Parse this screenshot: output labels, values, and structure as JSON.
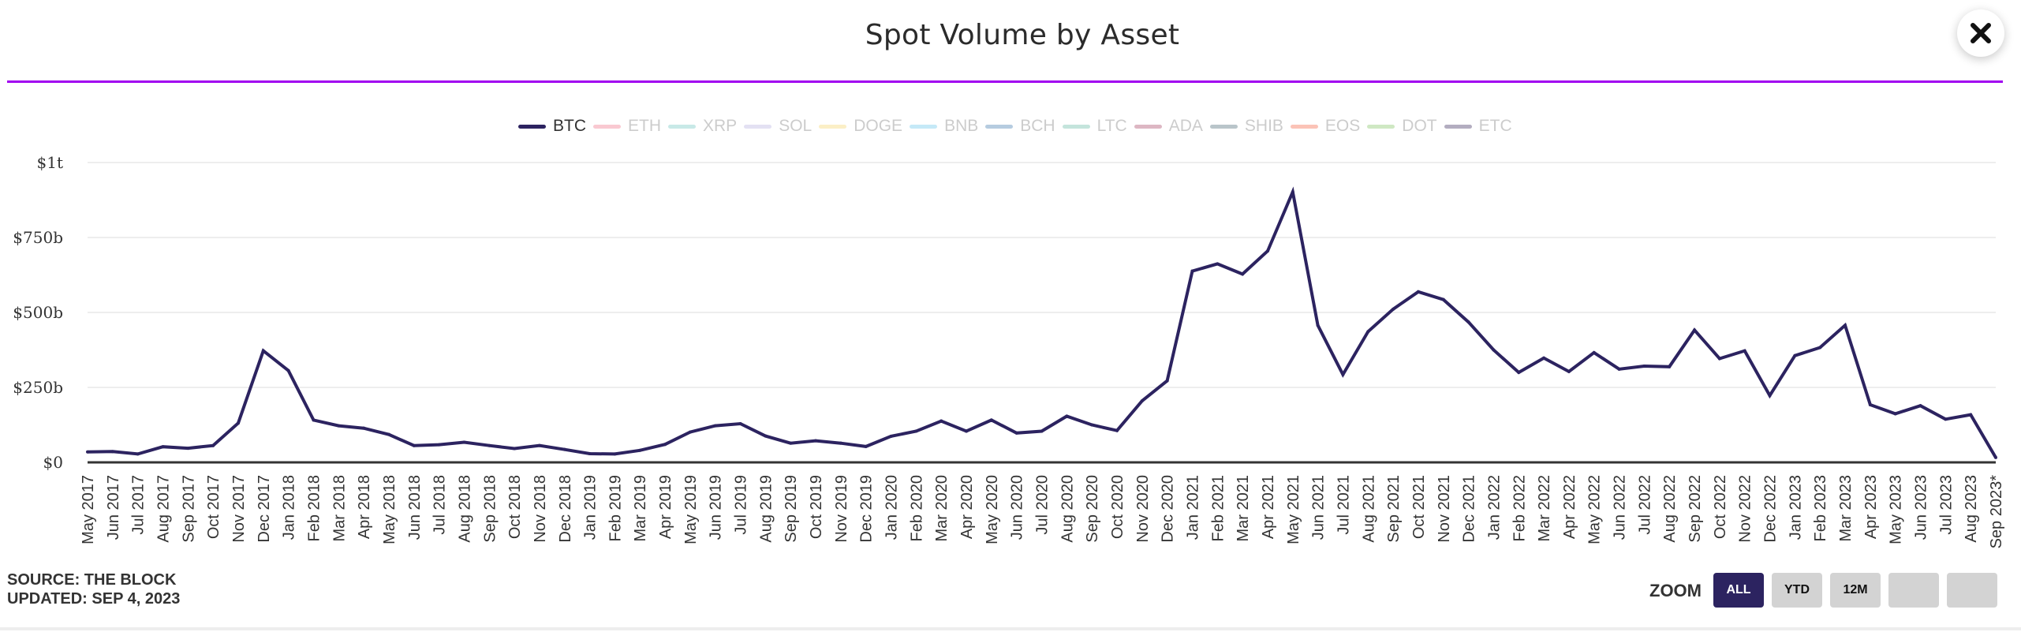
{
  "header": {
    "title": "Spot Volume by Asset",
    "close_icon": "close-icon"
  },
  "colors": {
    "accent_divider": "#a100f0",
    "btc_line": "#2c2360",
    "gridline": "#eeeeee",
    "axis": "#333333",
    "legend_inactive_text": "#cccccc",
    "legend_active_text": "#333333",
    "zoom_active_bg": "#2c2360",
    "zoom_inactive_bg": "#d3d3d3"
  },
  "legend": [
    {
      "label": "BTC",
      "color": "#2c2360",
      "active": true
    },
    {
      "label": "ETH",
      "color": "#f9c9d1",
      "active": false
    },
    {
      "label": "XRP",
      "color": "#c8e9e7",
      "active": false
    },
    {
      "label": "SOL",
      "color": "#e3e1f3",
      "active": false
    },
    {
      "label": "DOGE",
      "color": "#fbefc6",
      "active": false
    },
    {
      "label": "BNB",
      "color": "#c5e9f7",
      "active": false
    },
    {
      "label": "BCH",
      "color": "#b6cce0",
      "active": false
    },
    {
      "label": "LTC",
      "color": "#c4e4dc",
      "active": false
    },
    {
      "label": "ADA",
      "color": "#ddb7c3",
      "active": false
    },
    {
      "label": "SHIB",
      "color": "#b9c5ca",
      "active": false
    },
    {
      "label": "EOS",
      "color": "#fbc3b7",
      "active": false
    },
    {
      "label": "DOT",
      "color": "#cfe8c3",
      "active": false
    },
    {
      "label": "ETC",
      "color": "#b3adc0",
      "active": false
    }
  ],
  "footer": {
    "source": "SOURCE: THE BLOCK",
    "updated": "UPDATED: SEP 4, 2023",
    "zoom_label": "ZOOM",
    "zoom_buttons": [
      {
        "label": "ALL",
        "active": true
      },
      {
        "label": "YTD",
        "active": false
      },
      {
        "label": "12M",
        "active": false
      },
      {
        "label": "",
        "active": false
      },
      {
        "label": "",
        "active": false
      }
    ]
  },
  "chart_data": {
    "type": "line",
    "title": "Spot Volume by Asset",
    "xlabel": "",
    "ylabel": "",
    "ylim": [
      0,
      1000
    ],
    "y_unit": "billions USD",
    "y_ticks": [
      0,
      250,
      500,
      750,
      1000
    ],
    "y_tick_labels": [
      "$0",
      "$250b",
      "$500b",
      "$750b",
      "$1t"
    ],
    "grid": true,
    "legend_position": "top-center",
    "categories": [
      "May 2017",
      "Jun 2017",
      "Jul 2017",
      "Aug 2017",
      "Sep 2017",
      "Oct 2017",
      "Nov 2017",
      "Dec 2017",
      "Jan 2018",
      "Feb 2018",
      "Mar 2018",
      "Apr 2018",
      "May 2018",
      "Jun 2018",
      "Jul 2018",
      "Aug 2018",
      "Sep 2018",
      "Oct 2018",
      "Nov 2018",
      "Dec 2018",
      "Jan 2019",
      "Feb 2019",
      "Mar 2019",
      "Apr 2019",
      "May 2019",
      "Jun 2019",
      "Jul 2019",
      "Aug 2019",
      "Sep 2019",
      "Oct 2019",
      "Nov 2019",
      "Dec 2019",
      "Jan 2020",
      "Feb 2020",
      "Mar 2020",
      "Apr 2020",
      "May 2020",
      "Jun 2020",
      "Jul 2020",
      "Aug 2020",
      "Sep 2020",
      "Oct 2020",
      "Nov 2020",
      "Dec 2020",
      "Jan 2021",
      "Feb 2021",
      "Mar 2021",
      "Apr 2021",
      "May 2021",
      "Jun 2021",
      "Jul 2021",
      "Aug 2021",
      "Sep 2021",
      "Oct 2021",
      "Nov 2021",
      "Dec 2021",
      "Jan 2022",
      "Feb 2022",
      "Mar 2022",
      "Apr 2022",
      "May 2022",
      "Jun 2022",
      "Jul 2022",
      "Aug 2022",
      "Sep 2022",
      "Oct 2022",
      "Nov 2022",
      "Dec 2022",
      "Jan 2023",
      "Feb 2023",
      "Mar 2023",
      "Apr 2023",
      "May 2023",
      "Jun 2023",
      "Jul 2023",
      "Aug 2023",
      "Sep 2023*"
    ],
    "series": [
      {
        "name": "BTC",
        "color": "#2c2360",
        "visible": true,
        "values": [
          35,
          36,
          28,
          52,
          47,
          56,
          131,
          372,
          306,
          141,
          122,
          114,
          93,
          56,
          59,
          67,
          56,
          46,
          56,
          43,
          29,
          28,
          40,
          60,
          101,
          122,
          129,
          88,
          64,
          72,
          64,
          53,
          87,
          104,
          138,
          104,
          141,
          98,
          104,
          154,
          125,
          106,
          205,
          272,
          638,
          662,
          628,
          705,
          902,
          457,
          293,
          436,
          511,
          569,
          543,
          468,
          375,
          300,
          348,
          303,
          366,
          311,
          321,
          319,
          441,
          346,
          372,
          223,
          356,
          383,
          457,
          192,
          162,
          189,
          144,
          159,
          16
        ]
      }
    ]
  }
}
